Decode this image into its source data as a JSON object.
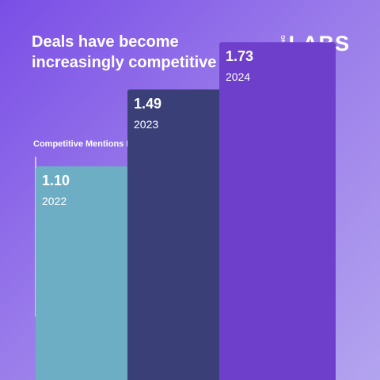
{
  "headline": "Deals have become increasingly competitive",
  "brand": {
    "small": "GONG",
    "main": "LABS"
  },
  "colors": {
    "bar_2022": "#6eaec4",
    "bar_2023": "#3a3f78",
    "bar_2024": "#6e3fcb",
    "axis": "#ffffff"
  },
  "chart_data": {
    "type": "bar",
    "title": "Competitive Mentions Per Call",
    "categories": [
      "2022",
      "2023",
      "2024"
    ],
    "values": [
      1.1,
      1.49,
      1.73
    ],
    "value_labels": [
      "1.10",
      "1.49",
      "1.73"
    ],
    "xlabel": "",
    "ylabel": "",
    "grid": false
  }
}
